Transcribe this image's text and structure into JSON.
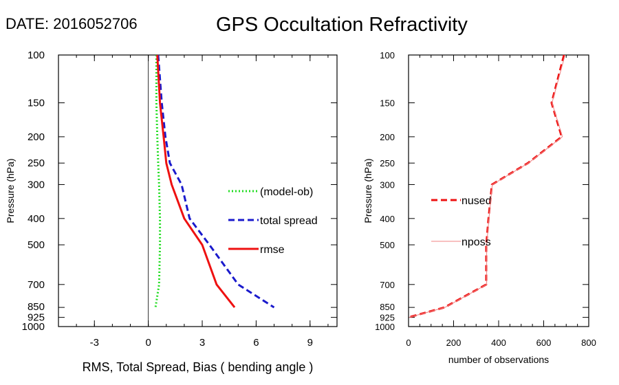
{
  "header": {
    "date_label": "DATE: 2016052706",
    "title": "GPS Occultation Refractivity"
  },
  "chart_data": [
    {
      "type": "line",
      "xlabel": "RMS, Total Spread, Bias ( bending angle )",
      "ylabel": "Pressure (hPa)",
      "xlim": [
        -5,
        10.5
      ],
      "ylim": [
        1000,
        100
      ],
      "y_scale": "log",
      "x_ticks": [
        -3,
        0,
        3,
        6,
        9
      ],
      "y_ticks": [
        100,
        150,
        200,
        250,
        300,
        400,
        500,
        700,
        850,
        925,
        1000
      ],
      "zero_line": true,
      "legend_placement": "right",
      "series": [
        {
          "name": "(model-ob)",
          "color": "#22dd22",
          "style": "dotted",
          "points": [
            [
              0.45,
              100
            ],
            [
              0.45,
              150
            ],
            [
              0.5,
              200
            ],
            [
              0.55,
              250
            ],
            [
              0.6,
              300
            ],
            [
              0.65,
              400
            ],
            [
              0.65,
              500
            ],
            [
              0.6,
              700
            ],
            [
              0.4,
              850
            ]
          ]
        },
        {
          "name": "total spread",
          "color": "#1a1acc",
          "style": "dashed",
          "points": [
            [
              0.55,
              100
            ],
            [
              0.75,
              150
            ],
            [
              0.95,
              200
            ],
            [
              1.2,
              250
            ],
            [
              1.85,
              300
            ],
            [
              2.3,
              400
            ],
            [
              3.4,
              500
            ],
            [
              5.0,
              700
            ],
            [
              7.0,
              850
            ]
          ]
        },
        {
          "name": "rmse",
          "color": "#ee1111",
          "style": "solid",
          "points": [
            [
              0.5,
              100
            ],
            [
              0.65,
              150
            ],
            [
              0.85,
              200
            ],
            [
              1.0,
              250
            ],
            [
              1.3,
              300
            ],
            [
              2.0,
              400
            ],
            [
              3.0,
              500
            ],
            [
              3.8,
              700
            ],
            [
              4.8,
              850
            ]
          ]
        }
      ]
    },
    {
      "type": "line",
      "xlabel": "number of observations",
      "ylabel": "Pressure (hPa)",
      "xlim": [
        0,
        800
      ],
      "ylim": [
        1000,
        100
      ],
      "y_scale": "log",
      "x_ticks": [
        0,
        200,
        400,
        600,
        800
      ],
      "y_ticks": [
        100,
        150,
        200,
        250,
        300,
        400,
        500,
        700,
        850,
        925,
        1000
      ],
      "legend_placement": "center-left",
      "series": [
        {
          "name": "nused",
          "color": "#ee1111",
          "style": "dashed",
          "points": [
            [
              690,
              100
            ],
            [
              635,
              150
            ],
            [
              680,
              200
            ],
            [
              530,
              250
            ],
            [
              370,
              300
            ],
            [
              355,
              400
            ],
            [
              345,
              500
            ],
            [
              345,
              700
            ],
            [
              160,
              850
            ],
            [
              0,
              925
            ]
          ]
        },
        {
          "name": "nposs",
          "color": "#f08080",
          "style": "solid",
          "points": [
            [
              695,
              100
            ],
            [
              637,
              150
            ],
            [
              683,
              200
            ],
            [
              532,
              250
            ],
            [
              372,
              300
            ],
            [
              357,
              400
            ],
            [
              347,
              500
            ],
            [
              347,
              700
            ],
            [
              162,
              850
            ],
            [
              2,
              925
            ]
          ]
        }
      ]
    }
  ]
}
